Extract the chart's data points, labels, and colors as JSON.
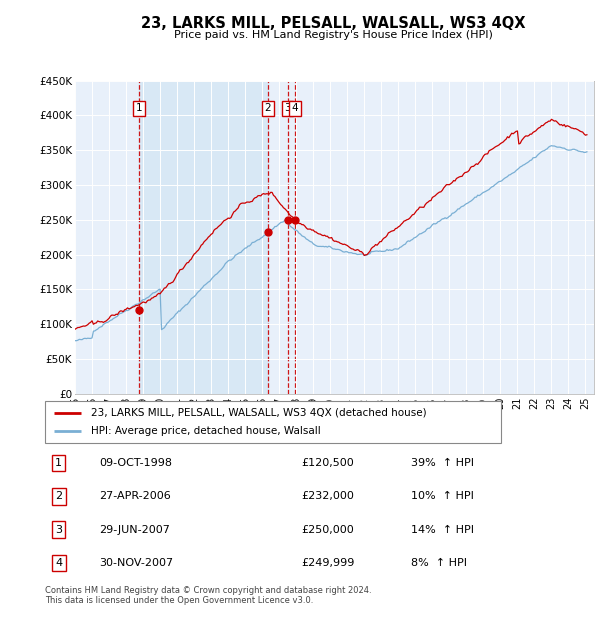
{
  "title": "23, LARKS MILL, PELSALL, WALSALL, WS3 4QX",
  "subtitle": "Price paid vs. HM Land Registry's House Price Index (HPI)",
  "footer": "Contains HM Land Registry data © Crown copyright and database right 2024.\nThis data is licensed under the Open Government Licence v3.0.",
  "legend_line1": "23, LARKS MILL, PELSALL, WALSALL, WS3 4QX (detached house)",
  "legend_line2": "HPI: Average price, detached house, Walsall",
  "red_color": "#cc0000",
  "blue_color": "#7aafd4",
  "shade_color": "#d8e8f5",
  "background_color": "#e8f0fa",
  "grid_color": "#ffffff",
  "ylim": [
    0,
    450000
  ],
  "yticks": [
    0,
    50000,
    100000,
    150000,
    200000,
    250000,
    300000,
    350000,
    400000,
    450000
  ],
  "ytick_labels": [
    "£0",
    "£50K",
    "£100K",
    "£150K",
    "£200K",
    "£250K",
    "£300K",
    "£350K",
    "£400K",
    "£450K"
  ],
  "transactions": [
    {
      "id": 1,
      "date": "09-OCT-1998",
      "year": 1998.78,
      "price": 120500,
      "hpi_pct": "39%",
      "direction": "↑"
    },
    {
      "id": 2,
      "date": "27-APR-2006",
      "year": 2006.32,
      "price": 232000,
      "hpi_pct": "10%",
      "direction": "↑"
    },
    {
      "id": 3,
      "date": "29-JUN-2007",
      "year": 2007.49,
      "price": 250000,
      "hpi_pct": "14%",
      "direction": "↑"
    },
    {
      "id": 4,
      "date": "30-NOV-2007",
      "year": 2007.91,
      "price": 249999,
      "hpi_pct": "8%",
      "direction": "↑"
    }
  ],
  "xlim": [
    1995.0,
    2025.5
  ],
  "xtick_years": [
    1995,
    1996,
    1997,
    1998,
    1999,
    2000,
    2001,
    2002,
    2003,
    2004,
    2005,
    2006,
    2007,
    2008,
    2009,
    2010,
    2011,
    2012,
    2013,
    2014,
    2015,
    2016,
    2017,
    2018,
    2019,
    2020,
    2021,
    2022,
    2023,
    2024,
    2025
  ]
}
